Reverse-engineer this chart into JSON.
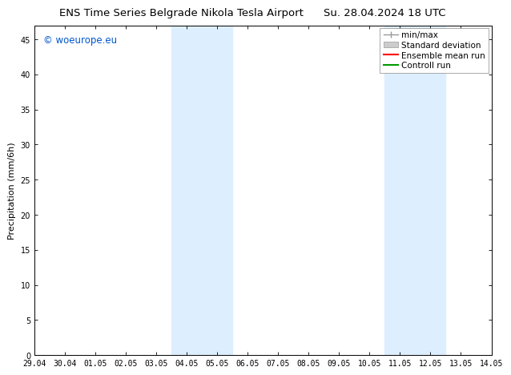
{
  "title_left": "ENS Time Series Belgrade Nikola Tesla Airport",
  "title_right": "Su. 28.04.2024 18 UTC",
  "ylabel": "Precipitation (mm/6h)",
  "watermark": "© woeurope.eu",
  "watermark_color": "#0055cc",
  "xlim_left": 0,
  "xlim_right": 15,
  "ylim_bottom": 0,
  "ylim_top": 47,
  "yticks": [
    0,
    5,
    10,
    15,
    20,
    25,
    30,
    35,
    40,
    45
  ],
  "xtick_labels": [
    "29.04",
    "30.04",
    "01.05",
    "02.05",
    "03.05",
    "04.05",
    "05.05",
    "06.05",
    "07.05",
    "08.05",
    "09.05",
    "10.05",
    "11.05",
    "12.05",
    "13.05",
    "14.05"
  ],
  "xtick_positions": [
    0,
    1,
    2,
    3,
    4,
    5,
    6,
    7,
    8,
    9,
    10,
    11,
    12,
    13,
    14,
    15
  ],
  "shaded_bands": [
    {
      "x_start": 4.5,
      "x_end": 6.5,
      "color": "#ddeeff",
      "alpha": 1.0
    },
    {
      "x_start": 11.5,
      "x_end": 13.5,
      "color": "#ddeeff",
      "alpha": 1.0
    }
  ],
  "bg_color": "#ffffff",
  "plot_bg_color": "#ffffff",
  "tick_fontsize": 7,
  "title_fontsize": 9.5,
  "ylabel_fontsize": 8,
  "watermark_fontsize": 8.5,
  "legend_fontsize": 7.5
}
